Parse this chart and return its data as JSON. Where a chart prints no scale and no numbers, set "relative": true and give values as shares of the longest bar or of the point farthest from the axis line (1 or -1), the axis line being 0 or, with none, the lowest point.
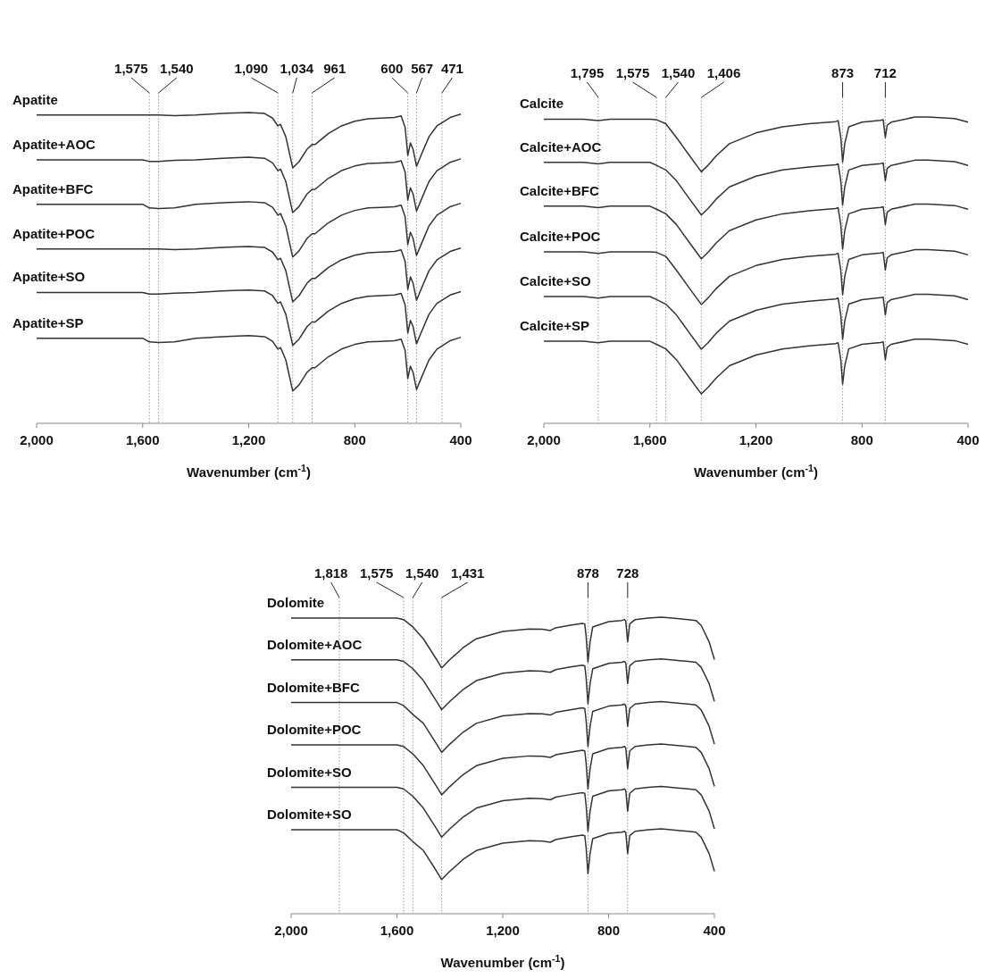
{
  "chart_data": [
    {
      "type": "line",
      "relative": true,
      "xlabel": "Wavenumber (cm$^{-1}$)",
      "xlim": [
        2000,
        400
      ],
      "xticks": [
        {
          "value": 2000,
          "label": "2,000"
        },
        {
          "value": 1600,
          "label": "1,600"
        },
        {
          "value": 1200,
          "label": "1,200"
        },
        {
          "value": 800,
          "label": "800"
        },
        {
          "value": 400,
          "label": "400"
        }
      ],
      "tick_labels": "x",
      "x": [
        2000,
        1800,
        1600,
        1575,
        1540,
        1480,
        1400,
        1300,
        1200,
        1140,
        1110,
        1090,
        1080,
        1060,
        1034,
        1010,
        980,
        961,
        950,
        900,
        850,
        800,
        750,
        700,
        650,
        625,
        610,
        600,
        590,
        580,
        567,
        550,
        520,
        490,
        471,
        440,
        400
      ],
      "series": [
        {
          "name": "Apatite",
          "color": "#333333",
          "values": [
            0.992,
            0.992,
            0.992,
            0.992,
            0.992,
            0.99,
            0.992,
            0.997,
            1.0,
            0.997,
            0.982,
            0.957,
            0.962,
            0.922,
            0.822,
            0.842,
            0.882,
            0.897,
            0.897,
            0.932,
            0.957,
            0.972,
            0.98,
            0.982,
            0.984,
            0.989,
            0.952,
            0.862,
            0.902,
            0.882,
            0.827,
            0.862,
            0.922,
            0.957,
            0.967,
            0.984,
            0.995
          ]
        },
        {
          "name": "Apatite+AOC",
          "color": "#333333",
          "values": [
            0.848,
            0.848,
            0.848,
            0.843,
            0.843,
            0.846,
            0.848,
            0.853,
            0.856,
            0.853,
            0.838,
            0.813,
            0.818,
            0.778,
            0.678,
            0.698,
            0.738,
            0.753,
            0.753,
            0.788,
            0.813,
            0.828,
            0.836,
            0.838,
            0.84,
            0.845,
            0.808,
            0.718,
            0.758,
            0.738,
            0.683,
            0.718,
            0.778,
            0.813,
            0.823,
            0.84,
            0.851
          ]
        },
        {
          "name": "Apatite+BFC",
          "color": "#333333",
          "values": [
            0.705,
            0.705,
            0.705,
            0.693,
            0.691,
            0.693,
            0.705,
            0.71,
            0.713,
            0.71,
            0.695,
            0.67,
            0.675,
            0.635,
            0.535,
            0.555,
            0.595,
            0.61,
            0.61,
            0.645,
            0.67,
            0.685,
            0.693,
            0.695,
            0.697,
            0.702,
            0.665,
            0.575,
            0.615,
            0.595,
            0.54,
            0.575,
            0.635,
            0.67,
            0.68,
            0.697,
            0.708
          ]
        },
        {
          "name": "Apatite+POC",
          "color": "#333333",
          "values": [
            0.561,
            0.561,
            0.561,
            0.561,
            0.561,
            0.559,
            0.561,
            0.566,
            0.569,
            0.566,
            0.551,
            0.526,
            0.531,
            0.491,
            0.391,
            0.411,
            0.451,
            0.466,
            0.466,
            0.501,
            0.526,
            0.541,
            0.549,
            0.551,
            0.553,
            0.558,
            0.521,
            0.431,
            0.471,
            0.451,
            0.396,
            0.431,
            0.491,
            0.526,
            0.536,
            0.553,
            0.564
          ]
        },
        {
          "name": "Apatite+SO",
          "color": "#333333",
          "values": [
            0.421,
            0.421,
            0.421,
            0.416,
            0.416,
            0.419,
            0.421,
            0.426,
            0.429,
            0.426,
            0.411,
            0.386,
            0.391,
            0.351,
            0.251,
            0.271,
            0.311,
            0.326,
            0.326,
            0.361,
            0.386,
            0.401,
            0.409,
            0.411,
            0.413,
            0.418,
            0.381,
            0.291,
            0.331,
            0.311,
            0.256,
            0.291,
            0.351,
            0.386,
            0.396,
            0.413,
            0.424
          ]
        },
        {
          "name": "Apatite+SP",
          "color": "#333333",
          "values": [
            0.274,
            0.274,
            0.274,
            0.262,
            0.26,
            0.262,
            0.274,
            0.279,
            0.282,
            0.279,
            0.264,
            0.239,
            0.244,
            0.204,
            0.104,
            0.124,
            0.164,
            0.179,
            0.179,
            0.214,
            0.239,
            0.254,
            0.262,
            0.264,
            0.266,
            0.271,
            0.234,
            0.144,
            0.184,
            0.164,
            0.109,
            0.144,
            0.204,
            0.239,
            0.249,
            0.266,
            0.277
          ]
        }
      ],
      "ref_lines": [
        {
          "axis": "x",
          "value": 1575,
          "label": "1,575",
          "color": "#999999",
          "line_style": "dotted"
        },
        {
          "axis": "x",
          "value": 1540,
          "label": "1,540",
          "color": "#999999",
          "line_style": "dotted"
        },
        {
          "axis": "x",
          "value": 1090,
          "label": "1,090",
          "color": "#999999",
          "line_style": "dotted"
        },
        {
          "axis": "x",
          "value": 1034,
          "label": "1,034",
          "color": "#999999",
          "line_style": "dotted"
        },
        {
          "axis": "x",
          "value": 961,
          "label": "961",
          "color": "#999999",
          "line_style": "dotted"
        },
        {
          "axis": "x",
          "value": 600,
          "label": "600",
          "color": "#999999",
          "line_style": "dotted"
        },
        {
          "axis": "x",
          "value": 567,
          "label": "567",
          "color": "#999999",
          "line_style": "dotted"
        },
        {
          "axis": "x",
          "value": 471,
          "label": "471",
          "color": "#999999",
          "line_style": "dotted"
        }
      ]
    },
    {
      "type": "line",
      "relative": true,
      "xlabel": "Wavenumber (cm$^{-1}$)",
      "xlim": [
        2000,
        400
      ],
      "xticks": [
        {
          "value": 2000,
          "label": "2,000"
        },
        {
          "value": 1600,
          "label": "1,600"
        },
        {
          "value": 1200,
          "label": "1,200"
        },
        {
          "value": 800,
          "label": "800"
        },
        {
          "value": 400,
          "label": "400"
        }
      ],
      "tick_labels": "x",
      "x": [
        2000,
        1850,
        1795,
        1750,
        1600,
        1575,
        1540,
        1500,
        1450,
        1406,
        1380,
        1350,
        1300,
        1200,
        1100,
        1000,
        900,
        890,
        880,
        873,
        865,
        850,
        800,
        730,
        720,
        712,
        705,
        690,
        600,
        550,
        450,
        400
      ],
      "series": [
        {
          "name": "Calcite",
          "color": "#333333",
          "values": [
            0.993,
            0.993,
            0.988,
            0.993,
            0.993,
            0.991,
            0.978,
            0.933,
            0.873,
            0.821,
            0.843,
            0.873,
            0.913,
            0.948,
            0.968,
            0.978,
            0.985,
            0.988,
            0.933,
            0.853,
            0.913,
            0.968,
            0.983,
            0.989,
            0.991,
            0.933,
            0.973,
            0.983,
            1.0,
            1.0,
            0.995,
            0.983
          ]
        },
        {
          "name": "Calcite+AOC",
          "color": "#333333",
          "values": [
            0.852,
            0.852,
            0.847,
            0.852,
            0.852,
            0.842,
            0.827,
            0.792,
            0.732,
            0.68,
            0.702,
            0.732,
            0.772,
            0.807,
            0.827,
            0.837,
            0.844,
            0.847,
            0.792,
            0.712,
            0.772,
            0.827,
            0.842,
            0.848,
            0.85,
            0.792,
            0.832,
            0.842,
            0.859,
            0.859,
            0.854,
            0.842
          ]
        },
        {
          "name": "Calcite+BFC",
          "color": "#333333",
          "values": [
            0.709,
            0.709,
            0.704,
            0.709,
            0.709,
            0.699,
            0.684,
            0.649,
            0.589,
            0.537,
            0.559,
            0.589,
            0.629,
            0.664,
            0.684,
            0.694,
            0.701,
            0.704,
            0.649,
            0.569,
            0.629,
            0.684,
            0.699,
            0.705,
            0.707,
            0.649,
            0.689,
            0.699,
            0.716,
            0.716,
            0.711,
            0.699
          ]
        },
        {
          "name": "Calcite+POC",
          "color": "#333333",
          "values": [
            0.56,
            0.56,
            0.555,
            0.56,
            0.56,
            0.558,
            0.545,
            0.5,
            0.44,
            0.388,
            0.41,
            0.44,
            0.48,
            0.515,
            0.535,
            0.545,
            0.552,
            0.555,
            0.5,
            0.42,
            0.48,
            0.535,
            0.55,
            0.556,
            0.558,
            0.5,
            0.54,
            0.55,
            0.567,
            0.567,
            0.562,
            0.55
          ]
        },
        {
          "name": "Calcite+SO",
          "color": "#333333",
          "values": [
            0.414,
            0.414,
            0.409,
            0.414,
            0.414,
            0.404,
            0.389,
            0.354,
            0.294,
            0.242,
            0.264,
            0.294,
            0.334,
            0.369,
            0.389,
            0.399,
            0.406,
            0.409,
            0.354,
            0.274,
            0.334,
            0.389,
            0.404,
            0.41,
            0.412,
            0.354,
            0.394,
            0.404,
            0.421,
            0.421,
            0.416,
            0.404
          ]
        },
        {
          "name": "Calcite+SP",
          "color": "#333333",
          "values": [
            0.268,
            0.268,
            0.263,
            0.268,
            0.268,
            0.258,
            0.243,
            0.208,
            0.148,
            0.096,
            0.118,
            0.148,
            0.188,
            0.223,
            0.243,
            0.253,
            0.26,
            0.263,
            0.208,
            0.128,
            0.188,
            0.243,
            0.258,
            0.264,
            0.266,
            0.208,
            0.248,
            0.258,
            0.275,
            0.275,
            0.27,
            0.258
          ]
        }
      ],
      "ref_lines": [
        {
          "axis": "x",
          "value": 1795,
          "label": "1,795",
          "color": "#999999",
          "line_style": "dotted"
        },
        {
          "axis": "x",
          "value": 1575,
          "label": "1,575",
          "color": "#999999",
          "line_style": "dotted"
        },
        {
          "axis": "x",
          "value": 1540,
          "label": "1,540",
          "color": "#999999",
          "line_style": "dotted"
        },
        {
          "axis": "x",
          "value": 1406,
          "label": "1,406",
          "color": "#999999",
          "line_style": "dotted"
        },
        {
          "axis": "x",
          "value": 873,
          "label": "873",
          "color": "#999999",
          "line_style": "dotted"
        },
        {
          "axis": "x",
          "value": 712,
          "label": "712",
          "color": "#999999",
          "line_style": "dotted"
        }
      ]
    },
    {
      "type": "line",
      "relative": true,
      "xlabel": "Wavenumber (cm$^{-1}$)",
      "xlim": [
        2000,
        400
      ],
      "xticks": [
        {
          "value": 2000,
          "label": "2,000"
        },
        {
          "value": 1600,
          "label": "1,600"
        },
        {
          "value": 1200,
          "label": "1,200"
        },
        {
          "value": 800,
          "label": "800"
        },
        {
          "value": 400,
          "label": "400"
        }
      ],
      "tick_labels": "x",
      "x": [
        2000,
        1818,
        1700,
        1600,
        1575,
        1540,
        1500,
        1450,
        1431,
        1400,
        1350,
        1300,
        1200,
        1100,
        1050,
        1020,
        1000,
        950,
        900,
        890,
        885,
        878,
        870,
        860,
        800,
        750,
        740,
        735,
        728,
        720,
        700,
        650,
        600,
        500,
        470,
        450,
        420,
        400
      ],
      "series": [
        {
          "name": "Dolomite",
          "color": "#333333",
          "values": [
            0.997,
            0.997,
            0.997,
            0.997,
            0.992,
            0.967,
            0.927,
            0.857,
            0.829,
            0.857,
            0.897,
            0.927,
            0.952,
            0.96,
            0.959,
            0.955,
            0.964,
            0.972,
            0.979,
            0.977,
            0.937,
            0.849,
            0.917,
            0.967,
            0.985,
            0.989,
            0.992,
            0.987,
            0.917,
            0.977,
            0.992,
            0.997,
            1.0,
            0.992,
            0.989,
            0.972,
            0.917,
            0.857
          ]
        },
        {
          "name": "Dolomite+AOC",
          "color": "#333333",
          "values": [
            0.856,
            0.856,
            0.856,
            0.856,
            0.851,
            0.826,
            0.786,
            0.716,
            0.688,
            0.716,
            0.756,
            0.786,
            0.811,
            0.819,
            0.818,
            0.814,
            0.823,
            0.831,
            0.838,
            0.836,
            0.796,
            0.708,
            0.776,
            0.826,
            0.844,
            0.848,
            0.851,
            0.846,
            0.776,
            0.836,
            0.851,
            0.856,
            0.859,
            0.851,
            0.848,
            0.831,
            0.776,
            0.716
          ]
        },
        {
          "name": "Dolomite+BFC",
          "color": "#333333",
          "values": [
            0.712,
            0.712,
            0.712,
            0.712,
            0.702,
            0.672,
            0.642,
            0.572,
            0.544,
            0.572,
            0.612,
            0.642,
            0.667,
            0.675,
            0.674,
            0.67,
            0.679,
            0.687,
            0.694,
            0.692,
            0.652,
            0.564,
            0.632,
            0.682,
            0.7,
            0.704,
            0.707,
            0.702,
            0.632,
            0.692,
            0.707,
            0.712,
            0.715,
            0.707,
            0.704,
            0.687,
            0.632,
            0.572
          ]
        },
        {
          "name": "Dolomite+POC",
          "color": "#333333",
          "values": [
            0.569,
            0.569,
            0.569,
            0.569,
            0.564,
            0.539,
            0.499,
            0.429,
            0.401,
            0.429,
            0.469,
            0.499,
            0.524,
            0.532,
            0.531,
            0.527,
            0.536,
            0.544,
            0.551,
            0.549,
            0.509,
            0.421,
            0.489,
            0.539,
            0.557,
            0.561,
            0.564,
            0.559,
            0.489,
            0.549,
            0.564,
            0.569,
            0.572,
            0.564,
            0.561,
            0.544,
            0.489,
            0.429
          ]
        },
        {
          "name": "Dolomite+SO",
          "color": "#333333",
          "values": [
            0.426,
            0.426,
            0.426,
            0.426,
            0.421,
            0.396,
            0.356,
            0.286,
            0.258,
            0.286,
            0.326,
            0.356,
            0.381,
            0.389,
            0.388,
            0.384,
            0.393,
            0.401,
            0.408,
            0.406,
            0.366,
            0.278,
            0.346,
            0.396,
            0.414,
            0.418,
            0.421,
            0.416,
            0.346,
            0.406,
            0.421,
            0.426,
            0.429,
            0.421,
            0.418,
            0.401,
            0.346,
            0.286
          ]
        },
        {
          "name": "Dolomite+SO",
          "color": "#333333",
          "values": [
            0.283,
            0.283,
            0.283,
            0.283,
            0.273,
            0.243,
            0.213,
            0.143,
            0.115,
            0.143,
            0.183,
            0.213,
            0.238,
            0.246,
            0.245,
            0.241,
            0.25,
            0.258,
            0.265,
            0.263,
            0.223,
            0.135,
            0.203,
            0.253,
            0.271,
            0.275,
            0.278,
            0.273,
            0.203,
            0.263,
            0.278,
            0.283,
            0.286,
            0.278,
            0.275,
            0.258,
            0.203,
            0.143
          ]
        }
      ],
      "ref_lines": [
        {
          "axis": "x",
          "value": 1818,
          "label": "1,818",
          "color": "#999999",
          "line_style": "dotted"
        },
        {
          "axis": "x",
          "value": 1575,
          "label": "1,575",
          "color": "#999999",
          "line_style": "dotted"
        },
        {
          "axis": "x",
          "value": 1540,
          "label": "1,540",
          "color": "#999999",
          "line_style": "dotted"
        },
        {
          "axis": "x",
          "value": 1431,
          "label": "1,431",
          "color": "#999999",
          "line_style": "dotted"
        },
        {
          "axis": "x",
          "value": 878,
          "label": "878",
          "color": "#999999",
          "line_style": "dotted"
        },
        {
          "axis": "x",
          "value": 728,
          "label": "728",
          "color": "#999999",
          "line_style": "dotted"
        }
      ]
    }
  ]
}
